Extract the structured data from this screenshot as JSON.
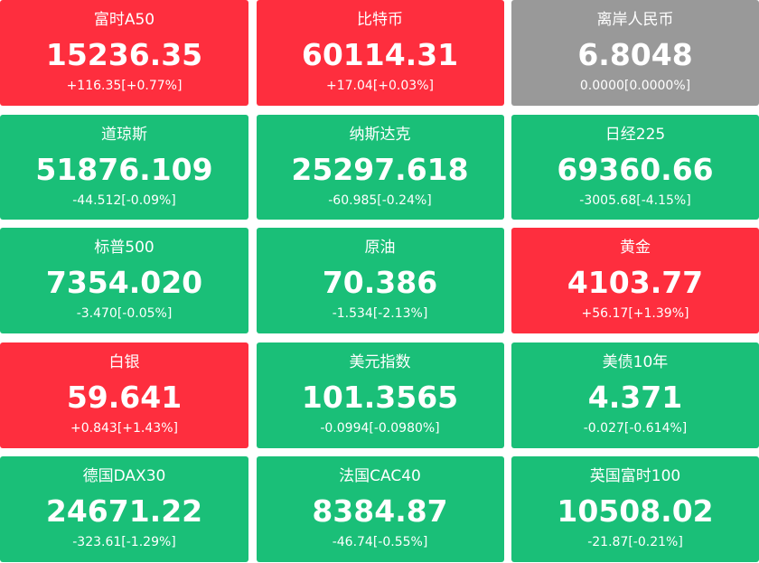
{
  "tiles": [
    {
      "name": "富时A50",
      "value": "15236.35",
      "change": "+116.35[+0.77%]",
      "color": "#fe2e3e"
    },
    {
      "name": "比特币",
      "value": "60114.31",
      "change": "+17.04[+0.03%]",
      "color": "#fe2e3e"
    },
    {
      "name": "离岸人民币",
      "value": "6.8048",
      "change": "0.0000[0.0000%]",
      "color": "#999999"
    },
    {
      "name": "道琼斯",
      "value": "51876.109",
      "change": "-44.512[-0.09%]",
      "color": "#1abf78"
    },
    {
      "name": "纳斯达克",
      "value": "25297.618",
      "change": "-60.985[-0.24%]",
      "color": "#1abf78"
    },
    {
      "name": "日经225",
      "value": "69360.66",
      "change": "-3005.68[-4.15%]",
      "color": "#1abf78"
    },
    {
      "name": "标普500",
      "value": "7354.020",
      "change": "-3.470[-0.05%]",
      "color": "#1abf78"
    },
    {
      "name": "原油",
      "value": "70.386",
      "change": "-1.534[-2.13%]",
      "color": "#1abf78"
    },
    {
      "name": "黄金",
      "value": "4103.77",
      "change": "+56.17[+1.39%]",
      "color": "#fe2e3e"
    },
    {
      "name": "白银",
      "value": "59.641",
      "change": "+0.843[+1.43%]",
      "color": "#fe2e3e"
    },
    {
      "name": "美元指数",
      "value": "101.3565",
      "change": "-0.0994[-0.0980%]",
      "color": "#1abf78"
    },
    {
      "name": "美债10年",
      "value": "4.371",
      "change": "-0.027[-0.614%]",
      "color": "#1abf78"
    },
    {
      "name": "德国DAX30",
      "value": "24671.22",
      "change": "-323.61[-1.29%]",
      "color": "#1abf78"
    },
    {
      "name": "法国CAC40",
      "value": "8384.87",
      "change": "-46.74[-0.55%]",
      "color": "#1abf78"
    },
    {
      "name": "英国富时100",
      "value": "10508.02",
      "change": "-21.87[-0.21%]",
      "color": "#1abf78"
    }
  ]
}
